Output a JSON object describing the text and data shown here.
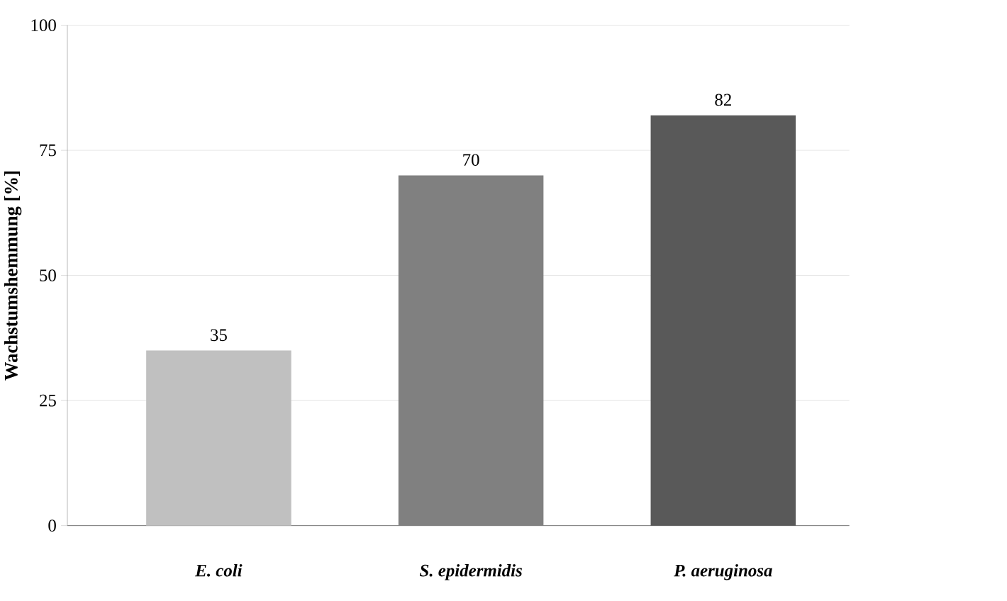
{
  "chart_data": {
    "type": "bar",
    "ylabel": "Wachstumshemmung [%]",
    "categories": [
      "E. coli",
      "S. epidermidis",
      "P. aeruginosa"
    ],
    "values": [
      35,
      70,
      82
    ],
    "colors": [
      "#c0c0c0",
      "#808080",
      "#595959"
    ],
    "ylim": [
      0,
      100
    ],
    "yticks": [
      0,
      25,
      50,
      75,
      100
    ],
    "grid": "y",
    "data_labels": true
  }
}
